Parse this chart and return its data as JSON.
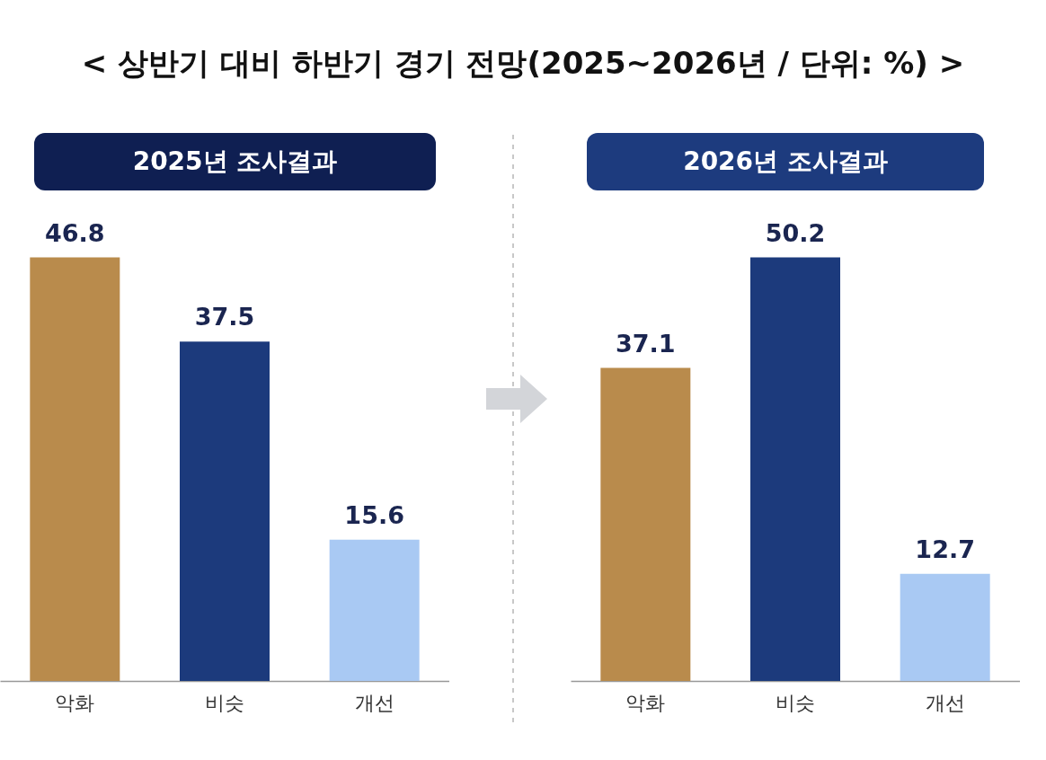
{
  "chart_data": [
    {
      "type": "bar",
      "title": "< 상반기 대비 하반기 경기 전망(2025~2026년 / 단위: %) >",
      "subtitle": "2025년 조사결과",
      "categories": [
        "악화",
        "비슷",
        "개선"
      ],
      "values": [
        46.8,
        37.5,
        15.6
      ],
      "colors": [
        "#b98b4c",
        "#1c3a7c",
        "#a9c9f3"
      ],
      "data_labels": true
    },
    {
      "type": "bar",
      "subtitle": "2026년 조사결과",
      "categories": [
        "악화",
        "비슷",
        "개선"
      ],
      "values": [
        37.1,
        50.2,
        12.7
      ],
      "colors": [
        "#b98b4c",
        "#1c3a7c",
        "#a9c9f3"
      ],
      "data_labels": true
    }
  ]
}
